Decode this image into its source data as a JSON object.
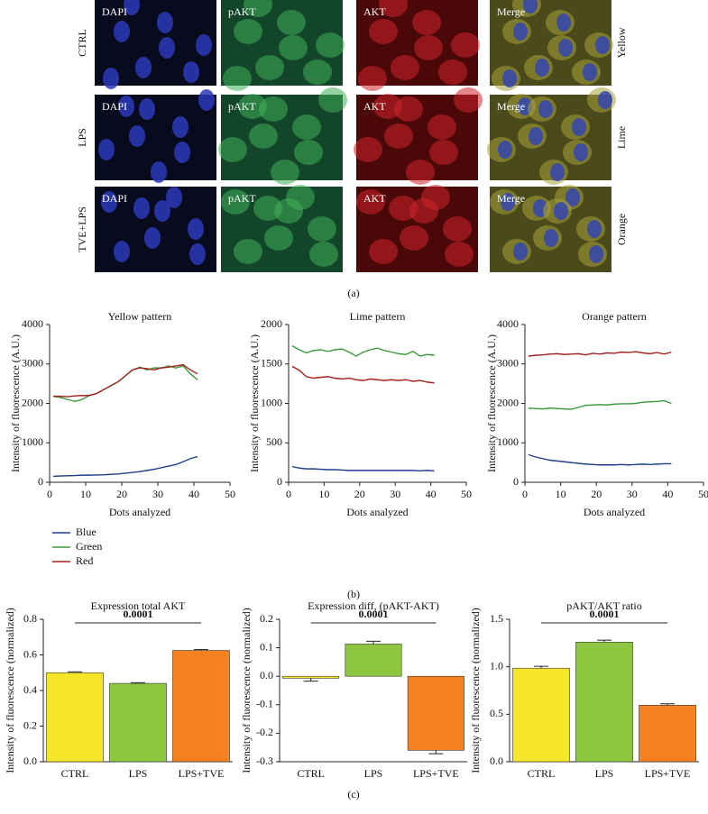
{
  "panel_a": {
    "column_labels": [
      "DAPI",
      "pAKT",
      "AKT",
      "Merge"
    ],
    "row_labels": [
      "CTRL",
      "LPS",
      "TVE+LPS"
    ],
    "pattern_labels": [
      "Yellow",
      "Lime",
      "Orange"
    ],
    "caption": "(a)"
  },
  "panel_b": {
    "caption": "(b)"
  },
  "panel_c": {
    "caption": "(c)"
  },
  "chart_data": [
    {
      "type": "line",
      "title": "Yellow pattern",
      "xlabel": "Dots analyzed",
      "ylabel": "Intensity of fluorescence (A.U.)",
      "x": [
        1,
        3,
        5,
        7,
        9,
        11,
        13,
        15,
        17,
        19,
        21,
        23,
        25,
        27,
        29,
        31,
        33,
        35,
        37,
        39,
        41
      ],
      "xlim": [
        0,
        50
      ],
      "xticks": [
        0,
        10,
        20,
        30,
        40,
        50
      ],
      "ylim": [
        0,
        4000
      ],
      "yticks": [
        0,
        1000,
        2000,
        3000,
        4000
      ],
      "series": [
        {
          "name": "Blue",
          "color": "#1f3f8a",
          "values": [
            150,
            160,
            165,
            170,
            180,
            180,
            185,
            190,
            200,
            210,
            230,
            250,
            270,
            300,
            330,
            370,
            410,
            450,
            520,
            600,
            650
          ]
        },
        {
          "name": "Green",
          "color": "#3a9a3a",
          "values": [
            2180,
            2150,
            2100,
            2050,
            2100,
            2200,
            2250,
            2350,
            2450,
            2550,
            2700,
            2850,
            2920,
            2850,
            2900,
            2900,
            2950,
            2900,
            2950,
            2750,
            2600
          ]
        },
        {
          "name": "Red",
          "color": "#a52020",
          "values": [
            2180,
            2180,
            2170,
            2190,
            2200,
            2200,
            2250,
            2350,
            2450,
            2550,
            2700,
            2850,
            2900,
            2880,
            2850,
            2900,
            2920,
            2950,
            2980,
            2850,
            2750
          ]
        }
      ]
    },
    {
      "type": "line",
      "title": "Lime pattern",
      "xlabel": "Dots analyzed",
      "ylabel": "Intensity of fluorescence (A.U.)",
      "x": [
        1,
        3,
        5,
        7,
        9,
        11,
        13,
        15,
        17,
        19,
        21,
        23,
        25,
        27,
        29,
        31,
        33,
        35,
        37,
        39,
        41
      ],
      "xlim": [
        0,
        50
      ],
      "xticks": [
        0,
        10,
        20,
        30,
        40,
        50
      ],
      "ylim": [
        0,
        2000
      ],
      "yticks": [
        0,
        500,
        1000,
        1500,
        2000
      ],
      "series": [
        {
          "name": "Blue",
          "color": "#1f3f8a",
          "values": [
            200,
            180,
            170,
            170,
            165,
            160,
            160,
            155,
            150,
            150,
            150,
            150,
            150,
            150,
            150,
            150,
            150,
            150,
            145,
            150,
            145
          ]
        },
        {
          "name": "Green",
          "color": "#3a9a3a",
          "values": [
            1730,
            1680,
            1640,
            1670,
            1680,
            1660,
            1680,
            1690,
            1650,
            1600,
            1650,
            1680,
            1700,
            1670,
            1650,
            1630,
            1620,
            1660,
            1600,
            1620,
            1610
          ]
        },
        {
          "name": "Red",
          "color": "#a52020",
          "values": [
            1470,
            1420,
            1340,
            1320,
            1330,
            1340,
            1320,
            1310,
            1320,
            1300,
            1290,
            1310,
            1300,
            1290,
            1300,
            1290,
            1300,
            1280,
            1290,
            1270,
            1260
          ]
        }
      ]
    },
    {
      "type": "line",
      "title": "Orange pattern",
      "xlabel": "Dots analyzed",
      "ylabel": "Intensity of fluorescence (A.U.)",
      "x": [
        1,
        3,
        5,
        7,
        9,
        11,
        13,
        15,
        17,
        19,
        21,
        23,
        25,
        27,
        29,
        31,
        33,
        35,
        37,
        39,
        41
      ],
      "xlim": [
        0,
        50
      ],
      "xticks": [
        0,
        10,
        20,
        30,
        40,
        50
      ],
      "ylim": [
        0,
        4000
      ],
      "yticks": [
        0,
        1000,
        2000,
        3000,
        4000
      ],
      "series": [
        {
          "name": "Blue",
          "color": "#1f3f8a",
          "values": [
            700,
            640,
            600,
            560,
            540,
            520,
            500,
            480,
            460,
            450,
            440,
            440,
            440,
            450,
            440,
            450,
            460,
            450,
            460,
            470,
            470
          ]
        },
        {
          "name": "Green",
          "color": "#3a9a3a",
          "values": [
            1880,
            1870,
            1860,
            1880,
            1870,
            1860,
            1850,
            1900,
            1950,
            1960,
            1970,
            1960,
            1980,
            1990,
            1990,
            2000,
            2030,
            2040,
            2050,
            2070,
            2000
          ]
        },
        {
          "name": "Red",
          "color": "#a52020",
          "values": [
            3200,
            3220,
            3230,
            3250,
            3260,
            3240,
            3250,
            3260,
            3230,
            3270,
            3250,
            3280,
            3270,
            3300,
            3290,
            3310,
            3280,
            3260,
            3290,
            3250,
            3300
          ]
        }
      ]
    },
    {
      "type": "bar",
      "title": "Expression total AKT",
      "annotation": "0.0001",
      "ylabel": "Intensity of fluorescence (normalized)",
      "categories": [
        "CTRL",
        "LPS",
        "LPS+TVE"
      ],
      "values": [
        0.5,
        0.44,
        0.625
      ],
      "errors": [
        0.005,
        0.004,
        0.005
      ],
      "colors": [
        "#f5e62a",
        "#8dc63f",
        "#f58220"
      ],
      "ylim": [
        0,
        0.8
      ],
      "yticks": [
        {
          "value": 0,
          "label": "0.0"
        },
        0.2,
        0.4,
        0.6,
        0.8
      ]
    },
    {
      "type": "bar",
      "title": "Expression diff, (pAKT-AKT)",
      "annotation": "0.0001",
      "ylabel": "Intensity of fluorescence (normalized)",
      "categories": [
        "CTRL",
        "LPS",
        "LPS+TVE"
      ],
      "values": [
        -0.007,
        0.113,
        -0.26
      ],
      "errors": [
        0.01,
        0.01,
        0.012
      ],
      "colors": [
        "#f5e62a",
        "#8dc63f",
        "#f58220"
      ],
      "ylim": [
        -0.3,
        0.2
      ],
      "yticks": [
        -0.3,
        -0.2,
        -0.1,
        {
          "value": 0,
          "label": "0.0"
        },
        0.1,
        0.2
      ]
    },
    {
      "type": "bar",
      "title": "pAKT/AKT ratio",
      "annotation": "0.0001",
      "ylabel": "Intensity of fluorescence (normalized)",
      "categories": [
        "CTRL",
        "LPS",
        "LPS+TVE"
      ],
      "values": [
        0.985,
        1.26,
        0.595
      ],
      "errors": [
        0.02,
        0.02,
        0.015
      ],
      "colors": [
        "#f5e62a",
        "#8dc63f",
        "#f58220"
      ],
      "ylim": [
        0,
        1.5
      ],
      "yticks": [
        {
          "value": 0,
          "label": "0.0"
        },
        0.5,
        {
          "value": 1,
          "label": "1.0"
        },
        1.5
      ]
    }
  ]
}
